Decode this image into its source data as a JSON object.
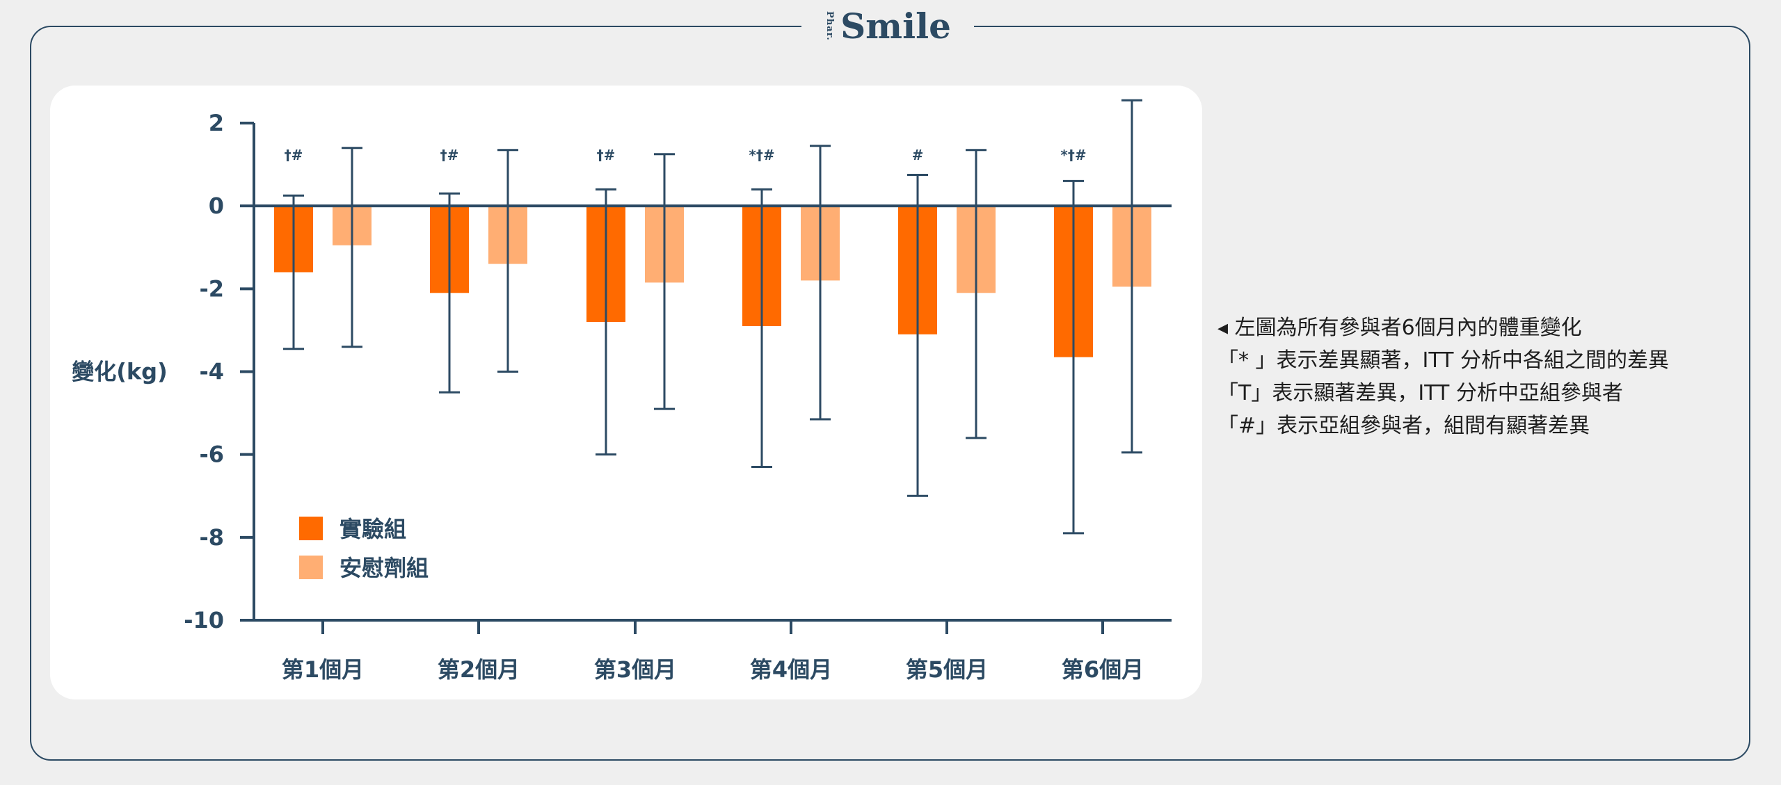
{
  "brand": {
    "small": "Phar.",
    "big": "Smile"
  },
  "notes": [
    "◂ 左圖為所有參與者6個月內的體重變化",
    "「* 」表示差異顯著，ITT 分析中各組之間的差異",
    "「T」表示顯著差異，ITT 分析中亞組參與者",
    "「#」表示亞組參與者，組間有顯著差異"
  ],
  "colors": {
    "experimental": "#ff6a00",
    "placebo": "#ffae73",
    "axis": "#2c4a63"
  },
  "chart_data": {
    "type": "bar",
    "ylabel": "變化(kg)",
    "ylim": [
      -10,
      2
    ],
    "yticks": [
      2,
      0,
      -2,
      -4,
      -6,
      -8,
      -10
    ],
    "grid": false,
    "legend_position": "bottom-left",
    "categories": [
      "第1個月",
      "第2個月",
      "第3個月",
      "第4個月",
      "第5個月",
      "第6個月"
    ],
    "series": [
      {
        "name": "實驗組",
        "values": [
          -1.6,
          -2.1,
          -2.8,
          -2.9,
          -3.1,
          -3.65
        ],
        "error_upper": [
          0.25,
          0.3,
          0.4,
          0.4,
          0.75,
          0.6
        ],
        "error_lower": [
          -3.45,
          -4.5,
          -6.0,
          -6.3,
          -7.0,
          -7.9
        ]
      },
      {
        "name": "安慰劑組",
        "values": [
          -0.95,
          -1.4,
          -1.85,
          -1.8,
          -2.1,
          -1.95
        ],
        "error_upper": [
          1.4,
          1.35,
          1.25,
          1.45,
          1.35,
          2.55
        ],
        "error_lower": [
          -3.4,
          -4.0,
          -4.9,
          -5.15,
          -5.6,
          -5.95
        ]
      }
    ],
    "annotations": [
      "†#",
      "†#",
      "†#",
      "*†#",
      "#",
      "*†#"
    ]
  }
}
